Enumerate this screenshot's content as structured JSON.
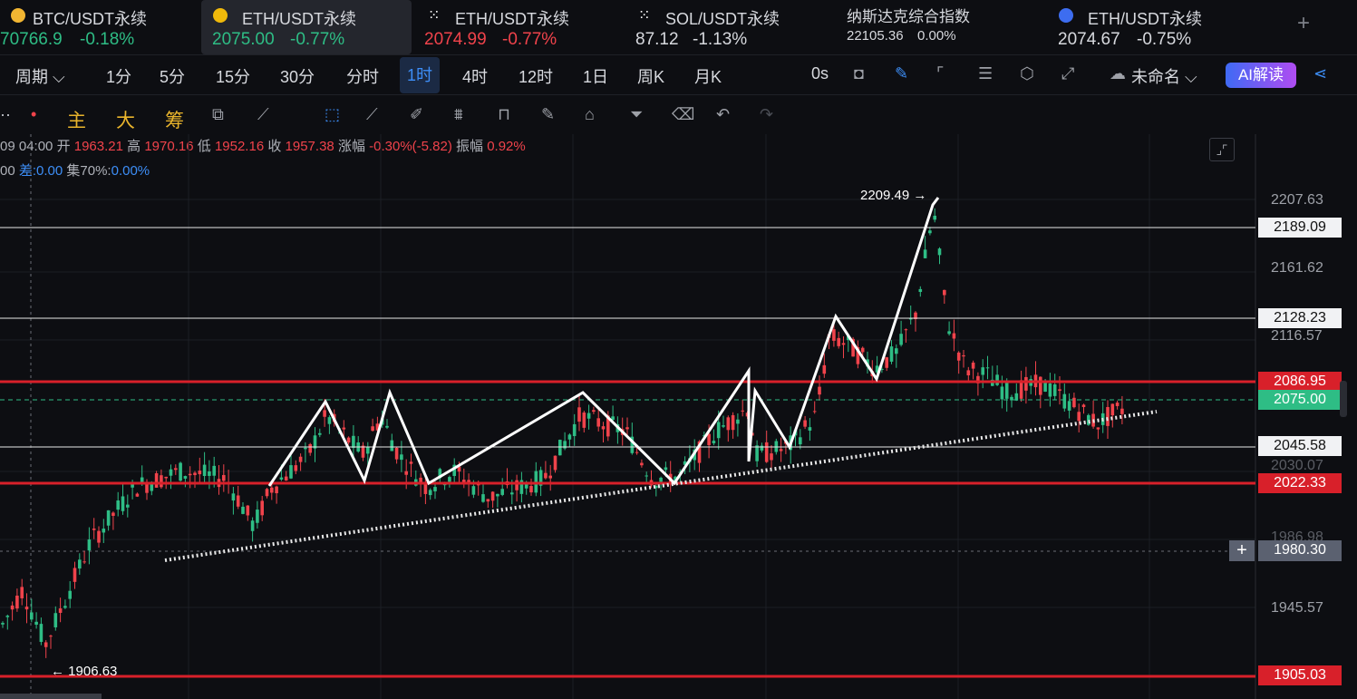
{
  "tickers": [
    {
      "name": "BTC/USDT永续",
      "price": "70766.9",
      "change": "-0.18%",
      "price_color": "up",
      "change_color": "up",
      "icon": "bitcoin-icon",
      "active": false
    },
    {
      "name": "ETH/USDT永续",
      "price": "2075.00",
      "change": "-0.77%",
      "price_color": "up",
      "change_color": "up",
      "icon": "binance-icon",
      "active": true
    },
    {
      "name": "ETH/USDT永续",
      "price": "2074.99",
      "change": "-0.77%",
      "price_color": "down",
      "change_color": "down",
      "icon": "okx-icon",
      "active": false
    },
    {
      "name": "SOL/USDT永续",
      "price": "87.12",
      "change": "-1.13%",
      "price_color": "neutral",
      "change_color": "neutral",
      "icon": "okx-icon",
      "active": false
    },
    {
      "name": "纳斯达克综合指数",
      "price": "22105.36",
      "change": "0.00%",
      "price_color": "neutral",
      "change_color": "neutral",
      "icon": "",
      "active": false
    },
    {
      "name": "ETH/USDT永续",
      "price": "2074.67",
      "change": "-0.75%",
      "price_color": "neutral",
      "change_color": "neutral",
      "icon": "drop-icon",
      "active": false
    }
  ],
  "toolbar": {
    "period_label": "周期",
    "timeframes": [
      "1分",
      "5分",
      "15分",
      "30分",
      "分时",
      "1时",
      "4时",
      "12时",
      "1日",
      "周K",
      "月K"
    ],
    "active_timeframe": "1时",
    "countdown": "0s",
    "layout_name": "未命名",
    "ai_label": "AI解读"
  },
  "indicators": [
    "主",
    "大",
    "筹"
  ],
  "info": {
    "time": "09 04:00",
    "open_label": "开",
    "open": "1963.21",
    "high_label": "高",
    "high": "1970.16",
    "low_label": "低",
    "low": "1952.16",
    "close_label": "收",
    "close": "1957.38",
    "change_label": "涨幅",
    "change": "-0.30%(-5.82)",
    "amp_label": "振幅",
    "amp": "0.92%",
    "line2_prefix": "00",
    "diff_label": "差:",
    "diff": "0.00",
    "set_label": "集70%:",
    "set": "0.00%"
  },
  "axis_labels": [
    "2207.63",
    "2161.62",
    "2116.57",
    "2030.07",
    "1986.98",
    "1945.57"
  ],
  "price_tags": [
    {
      "value": "2189.09",
      "style": "white"
    },
    {
      "value": "2128.23",
      "style": "white"
    },
    {
      "value": "2086.95",
      "style": "red"
    },
    {
      "value": "2075.00",
      "style": "green"
    },
    {
      "value": "2045.58",
      "style": "white"
    },
    {
      "value": "2022.33",
      "style": "red"
    },
    {
      "value": "1980.30",
      "style": "gray"
    },
    {
      "value": "1905.03",
      "style": "red"
    }
  ],
  "annotations": {
    "high_marker": "2209.49 →",
    "low_marker": "← 1906.63"
  },
  "colors": {
    "up": "#2ebd85",
    "down": "#f0434b",
    "accent": "#3d8ef7",
    "background": "#0d0e12"
  }
}
